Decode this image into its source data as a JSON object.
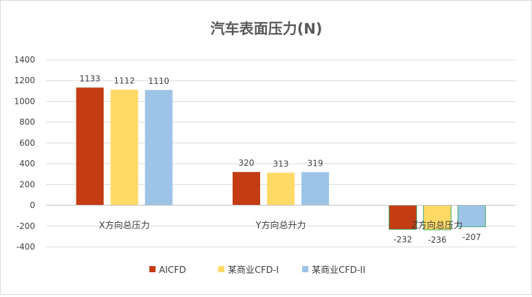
{
  "chart_data": {
    "type": "bar",
    "title": "汽车表面压力(N)",
    "xlabel": "",
    "ylabel": "",
    "ylim": [
      -400,
      1400
    ],
    "ytick_step": 200,
    "categories": [
      "X方向总压力",
      "Y方向总升力",
      "Z方向总压力"
    ],
    "series": [
      {
        "name": "AICFD",
        "values": [
          1133,
          320,
          -232
        ],
        "color": "#C43C14"
      },
      {
        "name": "某商业CFD-I",
        "values": [
          1112,
          313,
          -236
        ],
        "color": "#FFD966"
      },
      {
        "name": "某商业CFD-II",
        "values": [
          1110,
          319,
          -207
        ],
        "color": "#9DC3E6"
      }
    ],
    "grid": true,
    "legend": "bottom"
  }
}
